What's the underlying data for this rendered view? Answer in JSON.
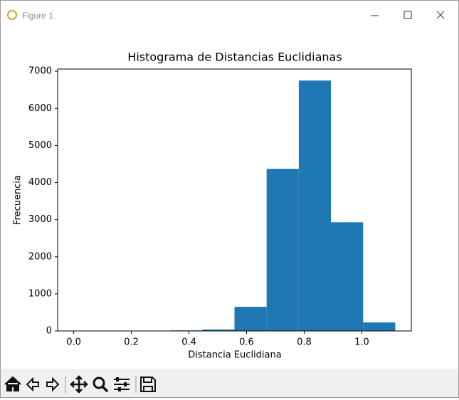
{
  "window": {
    "title": "Figure 1"
  },
  "chart_data": {
    "type": "histogram",
    "title": "Histograma de Distancias Euclidianas",
    "x_label": "Distancia Euclidiana",
    "y_label": "Frecuencia",
    "bins": [
      0,
      0.1116,
      0.2232,
      0.3348,
      0.4464,
      0.558,
      0.6696,
      0.7812,
      0.8928,
      1.0044,
      1.116
    ],
    "counts": [
      1,
      0,
      2,
      15,
      40,
      650,
      4370,
      6750,
      2930,
      230
    ],
    "color": "#1f77b4",
    "xlim": [
      -0.0558,
      1.1718
    ],
    "ylim": [
      0,
      7060
    ],
    "xticks": [
      {
        "value": 0,
        "label": "0.0"
      },
      0.2,
      0.4,
      0.6,
      0.8,
      {
        "value": 1,
        "label": "1.0"
      }
    ],
    "yticks": [
      0,
      1000,
      2000,
      3000,
      4000,
      5000,
      6000,
      7000
    ]
  }
}
